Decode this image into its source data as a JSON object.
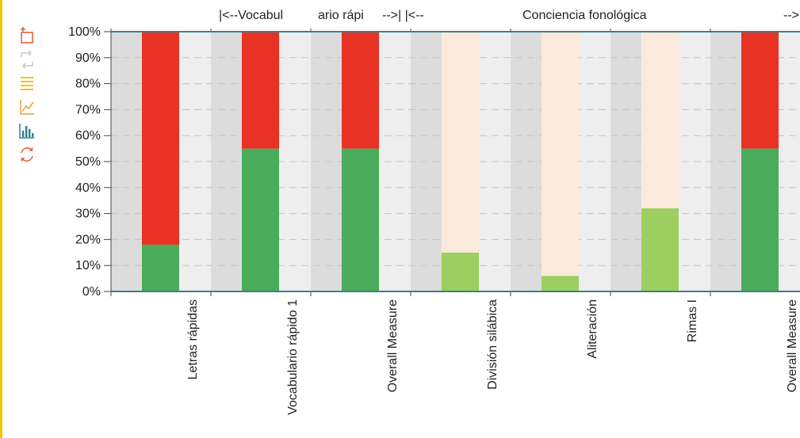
{
  "toolbar": {
    "items": [
      {
        "name": "crop-icon",
        "color": "#e8603c"
      },
      {
        "name": "swap-icon",
        "color": "#c8c8c8"
      },
      {
        "name": "stack-lines-icon",
        "color": "#f0c419"
      },
      {
        "name": "line-chart-icon",
        "color": "#e8a13c"
      },
      {
        "name": "bar-chart-icon",
        "color": "#2d7f8f"
      },
      {
        "name": "refresh-icon",
        "color": "#e8603c"
      }
    ]
  },
  "chart_data": {
    "type": "bar",
    "stacked": true,
    "group_labels": [
      "|<--Vocabul",
      "ario rápi",
      "-->| |<--",
      "Conciencia fonológica",
      "-->"
    ],
    "categories": [
      "Letras rápidas",
      "Vocabulario rápido 1",
      "Overall Measure",
      "División silábica",
      "Aliteración",
      "Rimas I",
      "Overall Measure"
    ],
    "series": [
      {
        "values": [
          18,
          55,
          55,
          15,
          6,
          32,
          55
        ],
        "colors": [
          "#4aab5b",
          "#4aab5b",
          "#4aab5b",
          "#9ccf5f",
          "#9ccf5f",
          "#9ccf5f",
          "#4aab5b"
        ]
      },
      {
        "values": [
          82,
          45,
          45,
          85,
          94,
          68,
          45
        ],
        "colors": [
          "#e83324",
          "#e83324",
          "#e83324",
          "#fbe9dc",
          "#fbe9dc",
          "#fbe9dc",
          "#e83324"
        ]
      }
    ],
    "y_ticks": [
      "0%",
      "10%",
      "20%",
      "30%",
      "40%",
      "50%",
      "60%",
      "70%",
      "80%",
      "90%",
      "100%"
    ],
    "ylim": [
      0,
      100
    ],
    "grid": true,
    "band_colors": [
      "#dcdcdc",
      "#eeeeee"
    ],
    "axis_color": "#3d7f8a"
  }
}
